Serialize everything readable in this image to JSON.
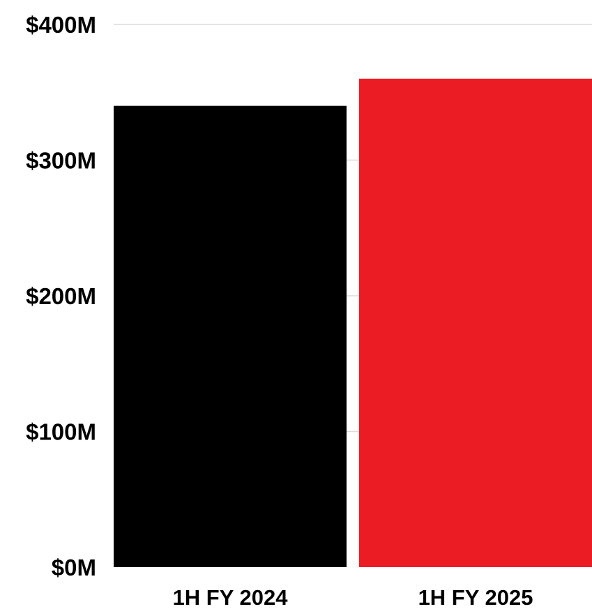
{
  "chart_data": {
    "type": "bar",
    "categories": [
      "1H FY 2024",
      "1H FY 2025"
    ],
    "values": [
      340,
      360
    ],
    "unit": "M",
    "ylim": [
      0,
      400
    ],
    "yticks": [
      0,
      100,
      200,
      300,
      400
    ],
    "ytick_labels": [
      "$0M",
      "$100M",
      "$200M",
      "$300M",
      "$400M"
    ],
    "bar_colors": [
      "#000000",
      "#ec1c24"
    ],
    "grid": true,
    "title": "",
    "xlabel": "",
    "ylabel": ""
  }
}
